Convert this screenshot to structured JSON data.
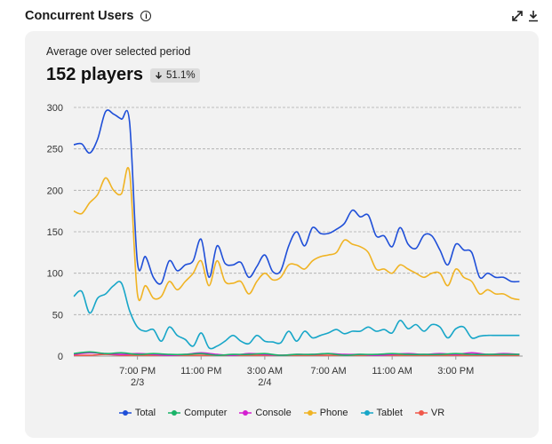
{
  "header": {
    "title": "Concurrent Users",
    "info_icon": "info-icon",
    "expand_icon": "expand-icon",
    "download_icon": "download-icon"
  },
  "summary": {
    "label": "Average over selected period",
    "value": "152 players",
    "change": "51.1%",
    "change_direction": "down"
  },
  "chart_data": {
    "type": "line",
    "ylim": [
      0,
      300
    ],
    "yticks": [
      0,
      50,
      100,
      150,
      200,
      250,
      300
    ],
    "xticks": [
      {
        "x": 6,
        "label": "7:00 PM",
        "sublabel": "2/3"
      },
      {
        "x": 10,
        "label": "11:00 PM",
        "sublabel": ""
      },
      {
        "x": 14,
        "label": "3:00 AM",
        "sublabel": "2/4"
      },
      {
        "x": 18,
        "label": "7:00 AM",
        "sublabel": ""
      },
      {
        "x": 22,
        "label": "11:00 AM",
        "sublabel": ""
      },
      {
        "x": 26,
        "label": "3:00 PM",
        "sublabel": ""
      }
    ],
    "xlim": [
      2,
      30.2
    ],
    "grid": true,
    "legend_position": "bottom",
    "series": [
      {
        "name": "Total",
        "color": "#1f4fd8",
        "x": [
          2,
          2.5,
          3,
          3.5,
          4,
          4.5,
          5,
          5.5,
          6,
          6.5,
          7,
          7.5,
          8,
          8.5,
          9,
          9.5,
          10,
          10.5,
          11,
          11.5,
          12,
          12.5,
          13,
          13.5,
          14,
          14.5,
          15,
          15.5,
          16,
          16.5,
          17,
          17.5,
          18,
          18.5,
          19,
          19.5,
          20,
          20.5,
          21,
          21.5,
          22,
          22.5,
          23,
          23.5,
          24,
          24.5,
          25,
          25.5,
          26,
          26.5,
          27,
          27.5,
          28,
          28.5,
          29,
          29.5,
          30
        ],
        "y": [
          255,
          256,
          245,
          262,
          295,
          292,
          286,
          283,
          113,
          120,
          95,
          88,
          115,
          103,
          110,
          115,
          141,
          95,
          133,
          112,
          110,
          113,
          95,
          108,
          122,
          102,
          103,
          133,
          150,
          133,
          155,
          148,
          148,
          153,
          160,
          176,
          168,
          170,
          145,
          145,
          132,
          155,
          135,
          130,
          146,
          145,
          128,
          110,
          135,
          128,
          125,
          95,
          100,
          95,
          95,
          90,
          90
        ]
      },
      {
        "name": "Computer",
        "color": "#19b368",
        "x": [
          2,
          3,
          4,
          5,
          6,
          7,
          8,
          9,
          10,
          11,
          12,
          13,
          14,
          15,
          16,
          17,
          18,
          19,
          20,
          21,
          22,
          23,
          24,
          25,
          26,
          27,
          28,
          29,
          30
        ],
        "y": [
          3,
          5,
          3,
          4,
          2,
          3,
          2,
          2,
          3,
          1,
          2,
          2,
          3,
          1,
          2,
          2,
          3,
          1,
          2,
          2,
          3,
          2,
          2,
          2,
          3,
          2,
          2,
          2,
          2
        ]
      },
      {
        "name": "Console",
        "color": "#d41fd1",
        "x": [
          2,
          3,
          4,
          5,
          6,
          7,
          8,
          9,
          10,
          11,
          12,
          13,
          14,
          15,
          16,
          17,
          18,
          19,
          20,
          21,
          22,
          23,
          24,
          25,
          26,
          27,
          28,
          29,
          30
        ],
        "y": [
          2,
          4,
          3,
          2,
          3,
          2,
          1,
          2,
          4,
          2,
          1,
          3,
          2,
          1,
          2,
          2,
          3,
          2,
          2,
          1,
          2,
          3,
          2,
          3,
          2,
          4,
          2,
          3,
          2
        ]
      },
      {
        "name": "Phone",
        "color": "#f0b323",
        "x": [
          2,
          2.5,
          3,
          3.5,
          4,
          4.5,
          5,
          5.5,
          6,
          6.5,
          7,
          7.5,
          8,
          8.5,
          9,
          9.5,
          10,
          10.5,
          11,
          11.5,
          12,
          12.5,
          13,
          13.5,
          14,
          14.5,
          15,
          15.5,
          16,
          16.5,
          17,
          17.5,
          18,
          18.5,
          19,
          19.5,
          20,
          20.5,
          21,
          21.5,
          22,
          22.5,
          23,
          23.5,
          24,
          24.5,
          25,
          25.5,
          26,
          26.5,
          27,
          27.5,
          28,
          28.5,
          29,
          29.5,
          30
        ],
        "y": [
          175,
          172,
          185,
          195,
          215,
          200,
          196,
          222,
          75,
          85,
          70,
          72,
          90,
          80,
          90,
          100,
          115,
          85,
          115,
          90,
          88,
          90,
          75,
          90,
          100,
          92,
          95,
          110,
          110,
          105,
          115,
          120,
          122,
          125,
          140,
          135,
          132,
          125,
          105,
          105,
          100,
          110,
          105,
          100,
          95,
          100,
          100,
          85,
          105,
          95,
          90,
          75,
          80,
          75,
          75,
          70,
          68
        ]
      },
      {
        "name": "Tablet",
        "color": "#17a6c8",
        "x": [
          2,
          2.5,
          3,
          3.5,
          4,
          4.5,
          5,
          5.5,
          6,
          6.5,
          7,
          7.5,
          8,
          8.5,
          9,
          9.5,
          10,
          10.5,
          11,
          11.5,
          12,
          12.5,
          13,
          13.5,
          14,
          14.5,
          15,
          15.5,
          16,
          16.5,
          17,
          17.5,
          18,
          18.5,
          19,
          19.5,
          20,
          20.5,
          21,
          21.5,
          22,
          22.5,
          23,
          23.5,
          24,
          24.5,
          25,
          25.5,
          26,
          26.5,
          27,
          27.5,
          28,
          28.5,
          29,
          29.5,
          30
        ],
        "y": [
          72,
          78,
          52,
          70,
          75,
          85,
          88,
          55,
          35,
          30,
          32,
          18,
          35,
          25,
          20,
          12,
          28,
          10,
          12,
          18,
          25,
          18,
          15,
          25,
          18,
          17,
          16,
          30,
          18,
          30,
          22,
          25,
          28,
          32,
          27,
          30,
          30,
          35,
          30,
          32,
          28,
          43,
          33,
          38,
          30,
          38,
          35,
          22,
          33,
          35,
          22,
          24,
          25,
          25,
          25,
          25,
          25
        ]
      },
      {
        "name": "VR",
        "color": "#f0584a",
        "x": [
          2,
          3,
          4,
          5,
          6,
          7,
          8,
          9,
          10,
          11,
          12,
          13,
          14,
          15,
          16,
          17,
          18,
          19,
          20,
          21,
          22,
          23,
          24,
          25,
          26,
          27,
          28,
          29,
          30
        ],
        "y": [
          1,
          1,
          2,
          1,
          1,
          1,
          1,
          1,
          1,
          1,
          1,
          1,
          1,
          1,
          1,
          1,
          1,
          1,
          1,
          1,
          1,
          1,
          1,
          1,
          1,
          1,
          1,
          1,
          1
        ]
      }
    ]
  }
}
